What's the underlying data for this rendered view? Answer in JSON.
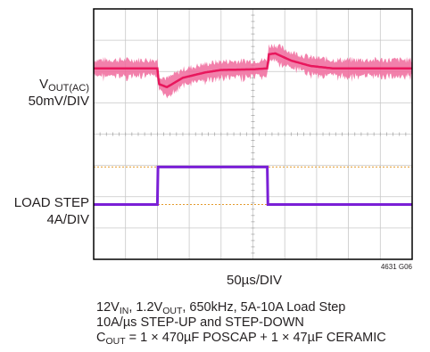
{
  "chart_data": {
    "type": "line",
    "title": "",
    "grid": true,
    "x_divisions": 10,
    "y_divisions": 8,
    "xlabel": "50µs/DIV",
    "x_scale": "50µs/DIV",
    "series": [
      {
        "name": "VOUT(AC)",
        "scale": "50mV/DIV",
        "color": "#e8175d",
        "unit": "div",
        "x": [
          0,
          2.0,
          2.05,
          2.3,
          2.8,
          3.5,
          4.0,
          5.0,
          5.45,
          5.5,
          5.7,
          6.2,
          6.8,
          7.5,
          8.5,
          10
        ],
        "y": [
          6.1,
          6.1,
          5.6,
          5.5,
          5.8,
          5.97,
          6.05,
          6.07,
          6.1,
          6.55,
          6.58,
          6.35,
          6.18,
          6.1,
          6.1,
          6.1
        ]
      },
      {
        "name": "LOAD STEP",
        "scale": "4A/DIV",
        "color": "#7a1fd6",
        "unit": "div",
        "x": [
          0,
          2.0,
          2.02,
          5.45,
          5.47,
          10
        ],
        "y": [
          1.75,
          1.75,
          2.95,
          2.95,
          1.75,
          1.75
        ]
      }
    ]
  },
  "labels": {
    "vout_name": "V",
    "vout_sub": "OUT(AC)",
    "vout_scale": "50mV/DIV",
    "load_name": "LOAD STEP",
    "load_scale": "4A/DIV",
    "time_scale": "50µs/DIV",
    "figure_id": "4631 G06"
  },
  "caption": {
    "line1": {
      "a": "12V",
      "a_sub": "IN",
      "b": ", 1.2V",
      "b_sub": "OUT",
      "c": ", 650kHz, 5A-10A Load Step"
    },
    "line2": "10A/µs STEP-UP and STEP-DOWN",
    "line3": {
      "a": "C",
      "a_sub": "OUT",
      "b": " = 1 × 470µF POSCAP + 1 × 47µF CERAMIC"
    }
  }
}
